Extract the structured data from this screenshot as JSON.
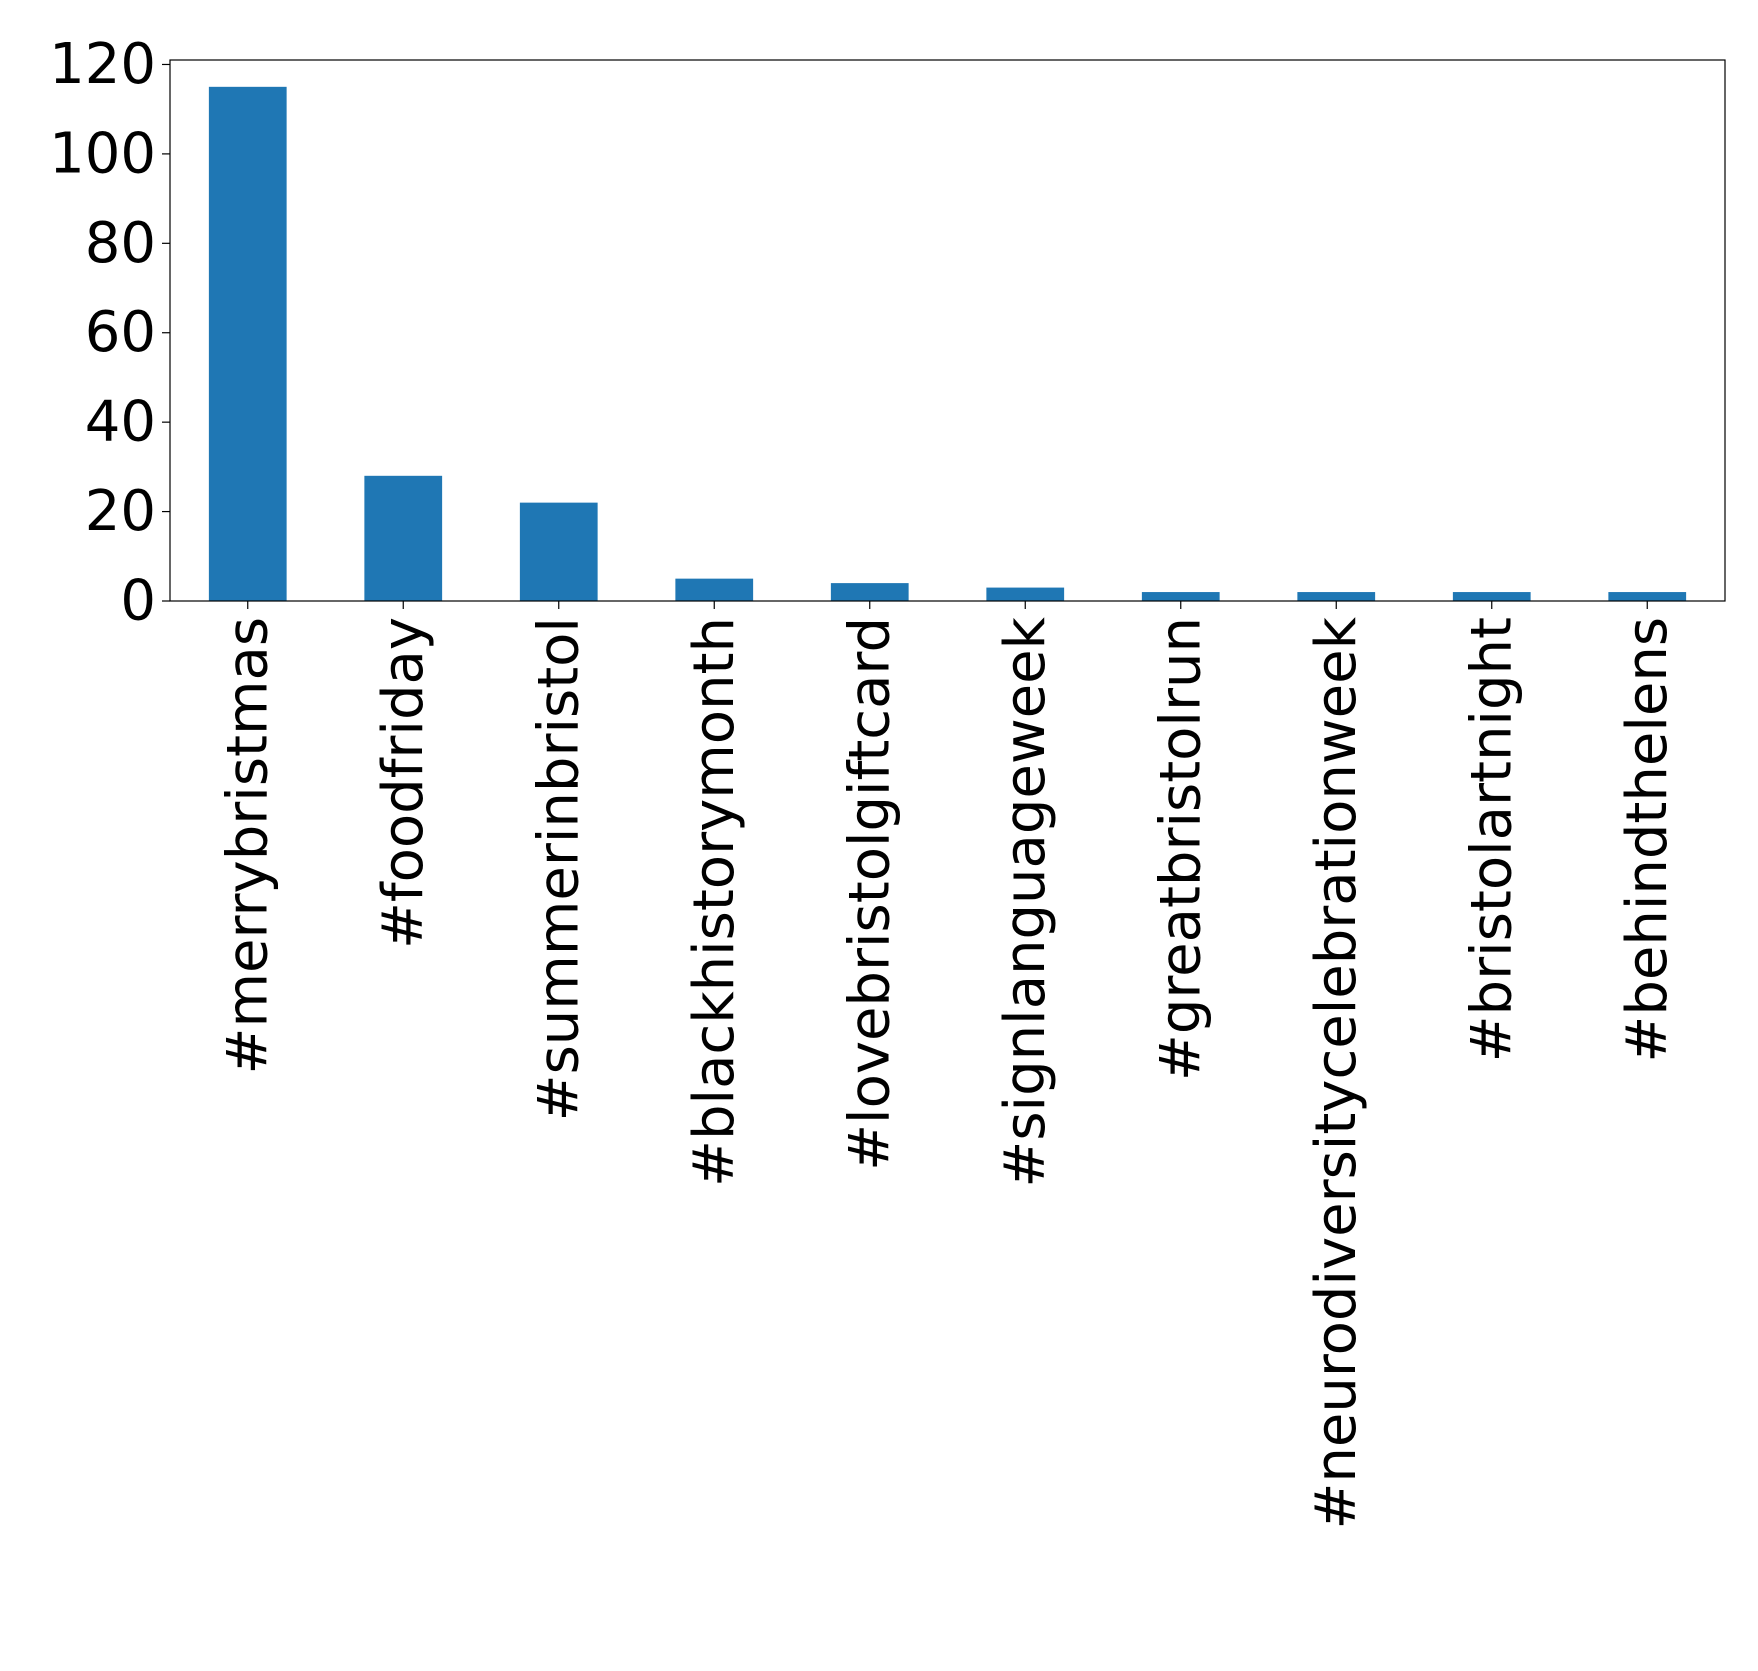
{
  "chart_data": {
    "type": "bar",
    "title": "",
    "xlabel": "",
    "ylabel": "",
    "categories": [
      "#merrybristmas",
      "#foodfriday",
      "#summerinbristol",
      "#blackhistorymonth",
      "#lovebristolgiftcard",
      "#signlanguageweek",
      "#greatbristolrun",
      "#neurodiversitycelebrationweek",
      "#bristolartnight",
      "#behindthelens"
    ],
    "values": [
      115,
      28,
      22,
      5,
      4,
      3,
      2,
      2,
      2,
      2
    ],
    "ylim": [
      0,
      121
    ],
    "yticks": [
      0,
      20,
      40,
      60,
      80,
      100,
      120
    ],
    "grid": false,
    "legend": "none",
    "bar_color": "#1f77b4"
  }
}
